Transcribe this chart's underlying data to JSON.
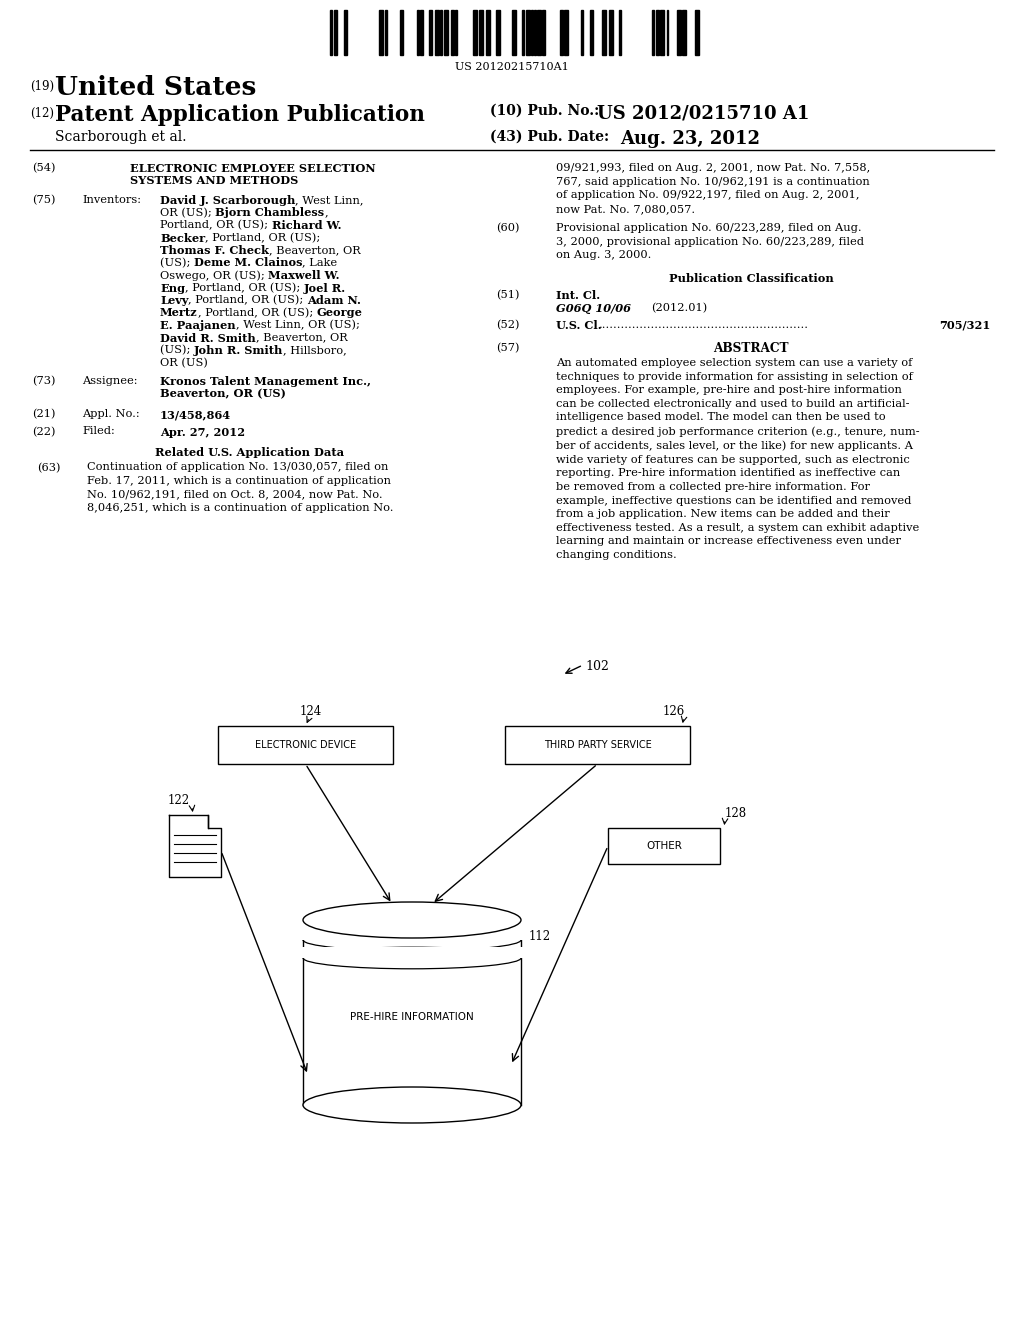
{
  "bg_color": "#ffffff",
  "barcode_text": "US 20120215710A1",
  "header": {
    "line1_num": "(19)",
    "line1_text": "United States",
    "line2_num": "(12)",
    "line2_text": "Patent Application Publication",
    "line2_right_label": "(10) Pub. No.:",
    "line2_right_value": "US 2012/0215710 A1",
    "line3_left": "Scarborough et al.",
    "line3_right_label": "(43) Pub. Date:",
    "line3_right_value": "Aug. 23, 2012"
  },
  "left_col": {
    "title_num": "(54)",
    "title_line1": "ELECTRONIC EMPLOYEE SELECTION",
    "title_line2": "SYSTEMS AND METHODS",
    "inventors_num": "(75)",
    "inventors_label": "Inventors:",
    "assignee_num": "(73)",
    "assignee_label": "Assignee:",
    "assignee_line1": "Kronos Talent Management Inc.,",
    "assignee_line2": "Beaverton, OR (US)",
    "appl_num_label": "(21)",
    "appl_no_label": "Appl. No.:",
    "appl_no_value": "13/458,864",
    "filed_num": "(22)",
    "filed_label": "Filed:",
    "filed_value": "Apr. 27, 2012",
    "related_header": "Related U.S. Application Data",
    "related_num": "(63)",
    "related_text": "Continuation of application No. 13/030,057, filed on\nFeb. 17, 2011, which is a continuation of application\nNo. 10/962,191, filed on Oct. 8, 2004, now Pat. No.\n8,046,251, which is a continuation of application No."
  },
  "right_col": {
    "cont_text": "09/921,993, filed on Aug. 2, 2001, now Pat. No. 7,558,\n767, said application No. 10/962,191 is a continuation\nof application No. 09/922,197, filed on Aug. 2, 2001,\nnow Pat. No. 7,080,057.",
    "prov_num": "(60)",
    "prov_text": "Provisional application No. 60/223,289, filed on Aug.\n3, 2000, provisional application No. 60/223,289, filed\non Aug. 3, 2000.",
    "pub_class_header": "Publication Classification",
    "intcl_num": "(51)",
    "intcl_label": "Int. Cl.",
    "intcl_class": "G06Q 10/06",
    "intcl_year": "(2012.01)",
    "uscl_num": "(52)",
    "uscl_label": "U.S. Cl.",
    "uscl_dots": "........................................................",
    "uscl_value": "705/321",
    "abstract_num": "(57)",
    "abstract_header": "ABSTRACT",
    "abstract_text": "An automated employee selection system can use a variety of\ntechniques to provide information for assisting in selection of\nemployees. For example, pre-hire and post-hire information\ncan be collected electronically and used to build an artificial-\nintelligence based model. The model can then be used to\npredict a desired job performance criterion (e.g., tenure, num-\nber of accidents, sales level, or the like) for new applicants. A\nwide variety of features can be supported, such as electronic\nreporting. Pre-hire information identified as ineffective can\nbe removed from a collected pre-hire information. For\nexample, ineffective questions can be identified and removed\nfrom a job application. New items can be added and their\neffectiveness tested. As a result, a system can exhibit adaptive\nlearning and maintain or increase effectiveness even under\nchanging conditions."
  },
  "diagram": {
    "label_102": "102",
    "box_124_label": "ELECTRONIC DEVICE",
    "box_124_num": "124",
    "box_126_label": "THIRD PARTY SERVICE",
    "box_126_num": "126",
    "doc_122_num": "122",
    "box_128_label": "OTHER",
    "box_128_num": "128",
    "cylinder_112_num": "112",
    "cylinder_label": "PRE-HIRE INFORMATION"
  }
}
